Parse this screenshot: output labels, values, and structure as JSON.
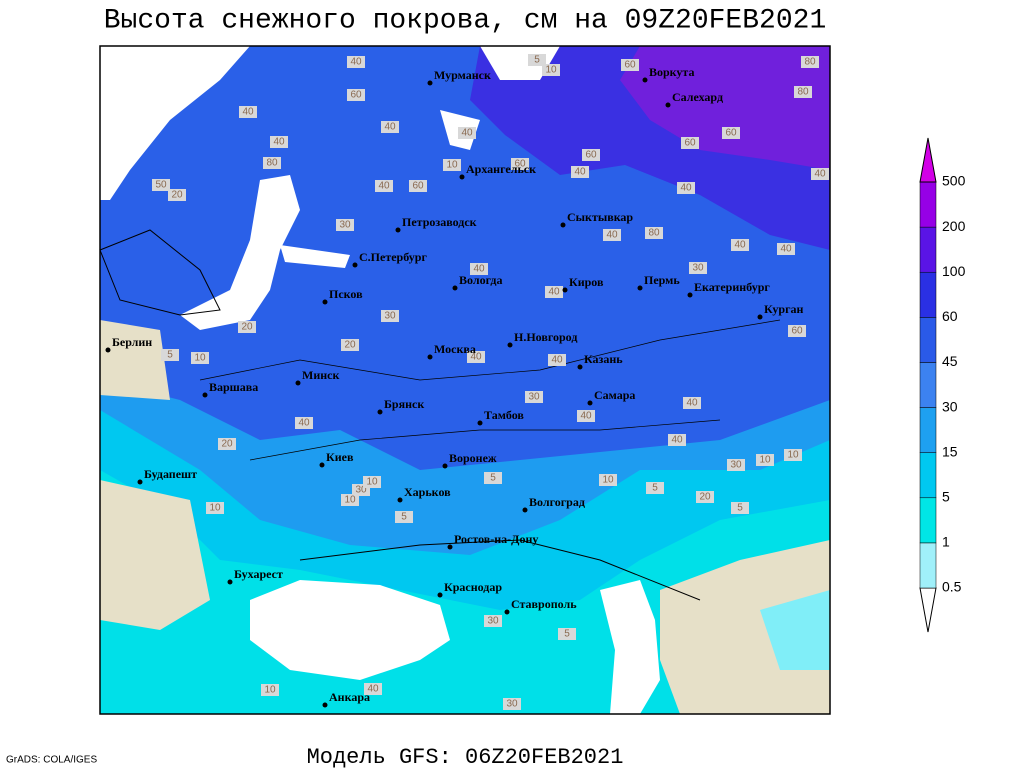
{
  "title": "Высота снежного покрова, см на 09Z20FEB2021",
  "footer": "Модель GFS: 06Z20FEB2021",
  "credit": "GrADS: COLA/IGES",
  "cities": [
    "Мурманск",
    "Воркута",
    "Салехард",
    "Архангельск",
    "Петрозаводск",
    "Сыктывкар",
    "С.Петербург",
    "Вологда",
    "Киров",
    "Пермь",
    "Екатеринбург",
    "Курган",
    "Псков",
    "Берлин",
    "Москва",
    "Н.Новгород",
    "Казань",
    "Минск",
    "Варшава",
    "Самара",
    "Брянск",
    "Тамбов",
    "Киев",
    "Воронеж",
    "Будапешт",
    "Харьков",
    "Волгоград",
    "Ростов-на-Дону",
    "Бухарест",
    "Краснодар",
    "Ставрополь",
    "Анкара"
  ],
  "contour_labels": [
    40,
    5,
    10,
    60,
    80,
    80,
    60,
    40,
    40,
    40,
    40,
    60,
    60,
    60,
    80,
    60,
    10,
    40,
    50,
    20,
    40,
    60,
    40,
    40,
    40,
    80,
    40,
    40,
    30,
    40,
    30,
    40,
    20,
    30,
    60,
    20,
    10,
    5,
    40,
    40,
    40,
    30,
    40,
    40,
    40,
    10,
    30,
    10,
    20,
    30,
    10,
    10,
    10,
    5,
    10,
    5,
    20,
    5,
    5,
    10,
    40,
    30,
    30,
    5
  ],
  "colorbar": {
    "levels": [
      0.5,
      1,
      5,
      15,
      30,
      45,
      60,
      100,
      200,
      500
    ],
    "colors": [
      "#ffffff",
      "#a0f0fa",
      "#00e6e6",
      "#00c8f0",
      "#1ea0f0",
      "#3c82f0",
      "#2a5ae8",
      "#2a30e4",
      "#5a14e6",
      "#9600e6",
      "#d200e6"
    ]
  }
}
